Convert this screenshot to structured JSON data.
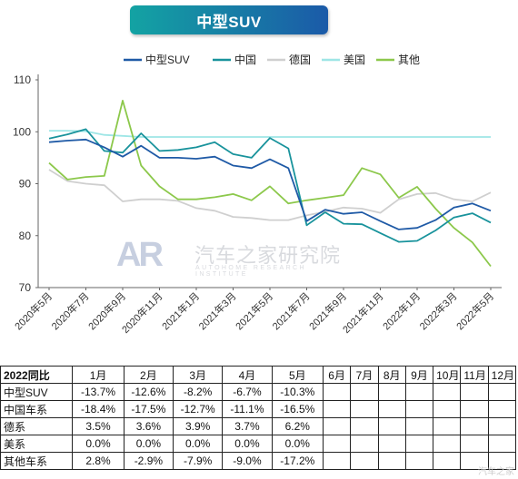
{
  "title": "中型SUV",
  "colors": {
    "title_bg_start": "#13a3a3",
    "title_bg_end": "#1b5aa8",
    "midsuv": "#1f5aa6",
    "china": "#19939c",
    "germany": "#cfcfcf",
    "usa": "#9ee6e6",
    "other": "#8cc84b",
    "axis": "#666666",
    "grid": "#e6e6e6"
  },
  "chart_data": {
    "type": "line",
    "title": "中型SUV",
    "xlabel": "",
    "ylabel": "",
    "ylim": [
      70,
      110
    ],
    "yticks": [
      70,
      80,
      90,
      100,
      110
    ],
    "grid": false,
    "legend_position": "top",
    "x": [
      "2020年5月",
      "2020年6月",
      "2020年7月",
      "2020年8月",
      "2020年9月",
      "2020年10月",
      "2020年11月",
      "2020年12月",
      "2021年1月",
      "2021年2月",
      "2021年3月",
      "2021年4月",
      "2021年5月",
      "2021年6月",
      "2021年7月",
      "2021年8月",
      "2021年9月",
      "2021年10月",
      "2021年11月",
      "2021年12月",
      "2022年1月",
      "2022年2月",
      "2022年3月",
      "2022年4月",
      "2022年5月"
    ],
    "x_tick_labels": [
      "2020年5月",
      "2020年7月",
      "2020年9月",
      "2020年11月",
      "2021年1月",
      "2021年3月",
      "2021年5月",
      "2021年7月",
      "2021年9月",
      "2021年11月",
      "2022年1月",
      "2022年3月",
      "2022年5月"
    ],
    "series": [
      {
        "name": "中型SUV",
        "color": "#1f5aa6",
        "values": [
          98.0,
          98.3,
          98.5,
          97.0,
          95.2,
          97.3,
          95.0,
          95.0,
          94.8,
          95.2,
          93.5,
          93.0,
          94.7,
          93.0,
          82.8,
          85.0,
          84.2,
          84.5,
          82.8,
          81.2,
          81.5,
          83.0,
          85.4,
          86.2,
          84.8
        ]
      },
      {
        "name": "中国",
        "color": "#19939c",
        "values": [
          98.7,
          99.5,
          100.5,
          96.3,
          96.0,
          99.7,
          96.3,
          96.5,
          97.0,
          98.0,
          95.7,
          95.0,
          98.8,
          96.8,
          82.0,
          84.5,
          82.3,
          82.2,
          80.5,
          78.8,
          79.0,
          81.0,
          83.5,
          84.3,
          82.5
        ]
      },
      {
        "name": "德国",
        "color": "#cfcfcf",
        "values": [
          92.7,
          90.5,
          90.0,
          89.7,
          86.6,
          87.0,
          87.0,
          86.7,
          85.3,
          84.8,
          83.6,
          83.4,
          83.0,
          83.0,
          83.9,
          84.6,
          85.4,
          85.2,
          84.4,
          87.0,
          88.0,
          88.2,
          87.0,
          86.6,
          88.3
        ]
      },
      {
        "name": "美国",
        "color": "#9ee6e6",
        "values": [
          100.2,
          100.2,
          100.1,
          99.4,
          99.2,
          99.0,
          99.0,
          99.0,
          99.0,
          99.0,
          99.0,
          99.0,
          99.0,
          99.0,
          99.0,
          99.0,
          99.0,
          99.0,
          99.0,
          99.0,
          99.0,
          99.0,
          99.0,
          99.0,
          99.0
        ]
      },
      {
        "name": "其他",
        "color": "#8cc84b",
        "values": [
          94.0,
          90.8,
          91.3,
          91.5,
          106.0,
          93.5,
          89.5,
          87.0,
          87.0,
          87.4,
          88.0,
          86.8,
          89.5,
          86.2,
          86.8,
          87.3,
          87.8,
          93.0,
          91.8,
          87.3,
          89.4,
          85.2,
          81.5,
          78.7,
          74.1
        ]
      }
    ]
  },
  "table": {
    "headers": [
      "2022同比",
      "1月",
      "2月",
      "3月",
      "4月",
      "5月",
      "6月",
      "7月",
      "8月",
      "9月",
      "10月",
      "11月",
      "12月"
    ],
    "rows": [
      {
        "label": "中型SUV",
        "values": [
          "-13.7%",
          "-12.6%",
          "-8.2%",
          "-6.7%",
          "-10.3%",
          "",
          "",
          "",
          "",
          "",
          "",
          ""
        ]
      },
      {
        "label": "中国车系",
        "values": [
          "-18.4%",
          "-17.5%",
          "-12.7%",
          "-11.1%",
          "-16.5%",
          "",
          "",
          "",
          "",
          "",
          "",
          ""
        ]
      },
      {
        "label": "德系",
        "values": [
          "3.5%",
          "3.6%",
          "3.9%",
          "3.7%",
          "6.2%",
          "",
          "",
          "",
          "",
          "",
          "",
          ""
        ]
      },
      {
        "label": "美系",
        "values": [
          "0.0%",
          "0.0%",
          "0.0%",
          "0.0%",
          "0.0%",
          "",
          "",
          "",
          "",
          "",
          "",
          ""
        ]
      },
      {
        "label": "其他车系",
        "values": [
          "2.8%",
          "-2.9%",
          "-7.9%",
          "-9.0%",
          "-17.2%",
          "",
          "",
          "",
          "",
          "",
          "",
          ""
        ]
      }
    ]
  },
  "watermark": {
    "logo_text": "AR",
    "cn_text": "汽车之家研究院",
    "en_text": "AUTOHOME RESEARCH INSTITUTE"
  },
  "corner_mark": "汽车之家"
}
